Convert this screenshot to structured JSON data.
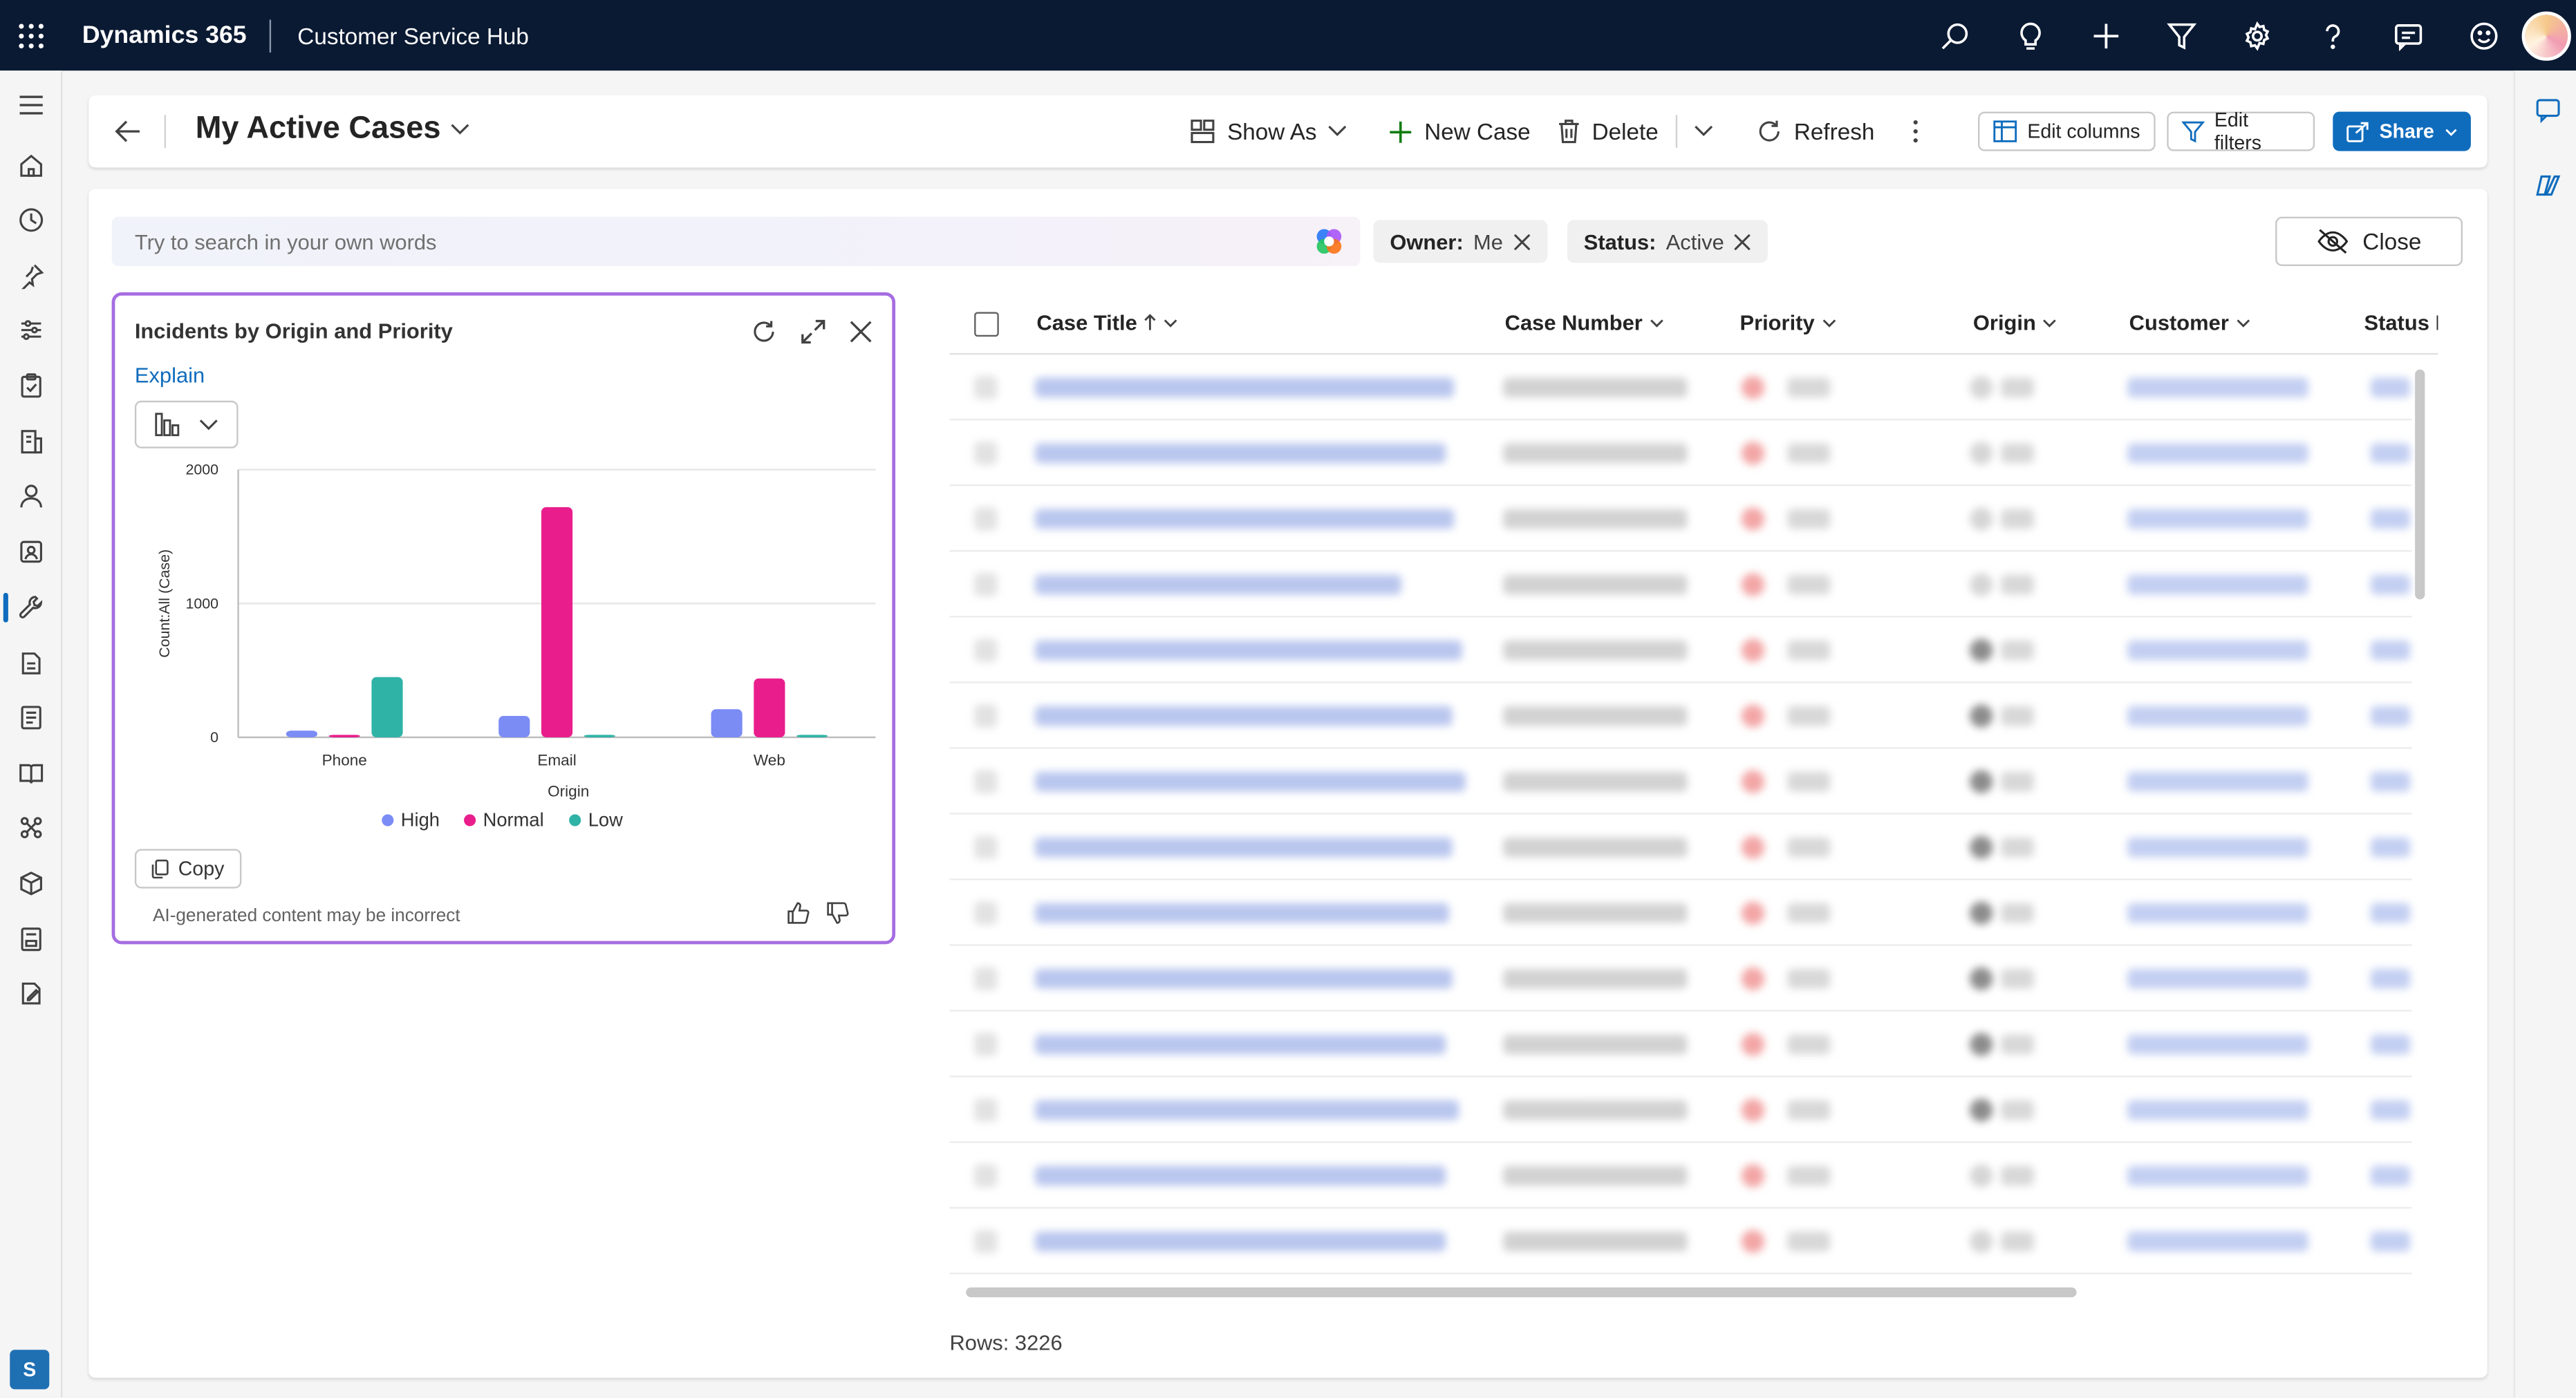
{
  "topbar": {
    "brand": "Dynamics 365",
    "app_name": "Customer Service Hub",
    "icons": [
      "search-icon",
      "lightbulb-icon",
      "plus-icon",
      "filter-icon",
      "gear-icon",
      "help-icon",
      "chat-icon",
      "smiley-icon",
      "avatar"
    ]
  },
  "leftnav": {
    "icons": [
      "hamburger-icon",
      "home-icon",
      "recent-icon",
      "pin-icon",
      "dashboards-icon",
      "activities-icon",
      "accounts-icon",
      "contacts-icon",
      "social-profiles-icon",
      "cases-icon",
      "queues-icon",
      "knowledge-icon",
      "knowledge-search-icon",
      "entitlements-icon",
      "products-icon",
      "services-icon",
      "service-schedule-icon"
    ],
    "active": "cases-icon",
    "area_initial": "S"
  },
  "commandbar": {
    "view_title": "My Active Cases",
    "show_as": "Show As",
    "new_case": "New Case",
    "delete": "Delete",
    "refresh": "Refresh",
    "edit_columns": "Edit columns",
    "edit_filters": "Edit filters",
    "share": "Share"
  },
  "search": {
    "placeholder": "Try to search in your own words"
  },
  "filters": [
    {
      "label": "Owner:",
      "value": "Me"
    },
    {
      "label": "Status:",
      "value": "Active"
    }
  ],
  "close_label": "Close",
  "chart_card": {
    "title": "Incidents by Origin and Priority",
    "explain": "Explain",
    "copy": "Copy",
    "disclaimer": "AI-generated content may be incorrect"
  },
  "chart_data": {
    "type": "bar",
    "categories": [
      "Phone",
      "Email",
      "Web"
    ],
    "series": [
      {
        "name": "High",
        "color": "#7b8cf5",
        "values": [
          50,
          160,
          210
        ]
      },
      {
        "name": "Normal",
        "color": "#e91e8c",
        "values": [
          10,
          1720,
          440
        ]
      },
      {
        "name": "Low",
        "color": "#2fb3a7",
        "values": [
          450,
          10,
          10
        ]
      }
    ],
    "xlabel": "Origin",
    "ylabel": "Count:All (Case)",
    "ylim": [
      0,
      2000
    ],
    "yticks": [
      0,
      1000,
      2000
    ],
    "legend": "bottom",
    "grid": true
  },
  "grid": {
    "columns": [
      "Case Title",
      "Case Number",
      "Priority",
      "Origin",
      "Customer",
      "Status R"
    ],
    "sorted_column": "Case Title",
    "rows_count_label": "Rows: 3226"
  },
  "colors": {
    "accent": "#0f6cbd",
    "topbar": "#0b1a33",
    "card_border": "#a56de2"
  }
}
